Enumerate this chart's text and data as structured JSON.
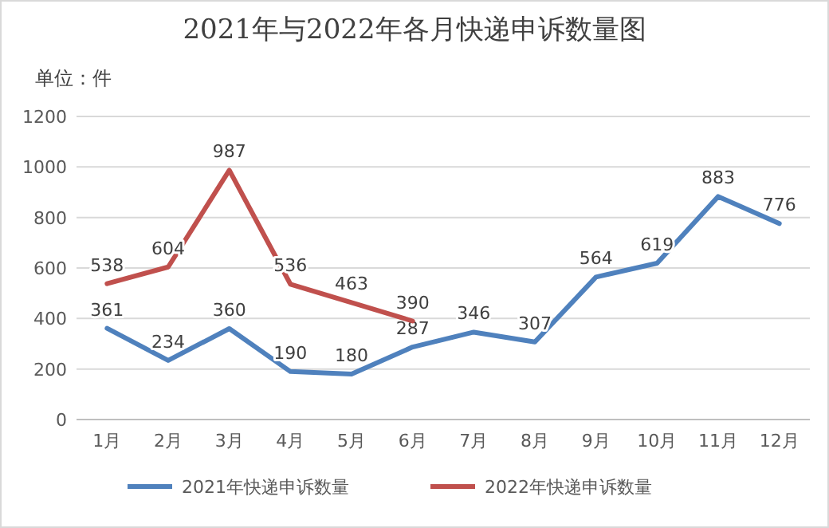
{
  "chart_data": {
    "type": "line",
    "title": "2021年与2022年各月快递申诉数量图",
    "annotations": [
      "单位：件"
    ],
    "categories": [
      "1月",
      "2月",
      "3月",
      "4月",
      "5月",
      "6月",
      "7月",
      "8月",
      "9月",
      "10月",
      "11月",
      "12月"
    ],
    "series": [
      {
        "name": "2021年快递申诉数量",
        "color": "#4f81bd",
        "values": [
          361,
          234,
          360,
          190,
          180,
          287,
          346,
          307,
          564,
          619,
          883,
          776
        ]
      },
      {
        "name": "2022年快递申诉数量",
        "color": "#c0504d",
        "values": [
          538,
          604,
          987,
          536,
          463,
          390,
          null,
          null,
          null,
          null,
          null,
          null
        ]
      }
    ],
    "ylim": [
      0,
      1200
    ],
    "yticks": [
      0,
      200,
      400,
      600,
      800,
      1000,
      1200
    ],
    "grid": "y",
    "legend": "bottom",
    "data_labels": true,
    "marker": "none",
    "line_style": "solid"
  }
}
